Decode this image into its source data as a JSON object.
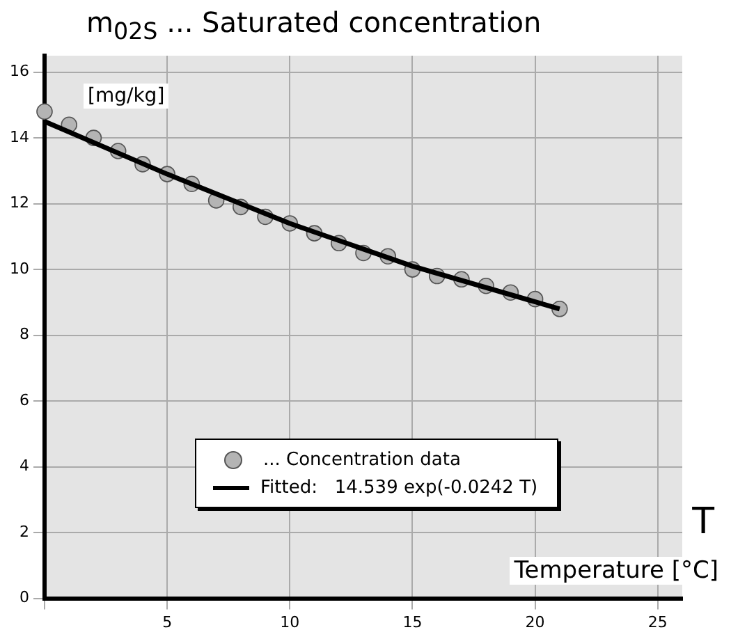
{
  "chart_data": {
    "type": "scatter",
    "title": "m$_{02S}$ ... Saturated concentration",
    "ylabel": "[mg/kg]",
    "xlabel": "Temperature [°C]",
    "annotations": [
      "T"
    ],
    "series": [
      {
        "name": "... Concentration data",
        "type": "scatter",
        "color": "#b4b4b4",
        "marker": "circle",
        "x": [
          0,
          1,
          2,
          3,
          4,
          5,
          6,
          7,
          8,
          9,
          10,
          11,
          12,
          13,
          14,
          15,
          16,
          17,
          18,
          19,
          20,
          21
        ],
        "values": [
          14.8,
          14.4,
          14.0,
          13.6,
          13.2,
          12.9,
          12.6,
          12.1,
          11.9,
          11.6,
          11.4,
          11.1,
          10.8,
          10.5,
          10.4,
          10.0,
          9.8,
          9.7,
          9.5,
          9.3,
          9.1,
          8.8
        ]
      },
      {
        "name": "Fitted:   14.539 exp(-0.0242 T)",
        "type": "line",
        "color": "#000000",
        "marker": "none",
        "line_style": "solid",
        "x": [
          0,
          5,
          10,
          15,
          21
        ],
        "values": [
          14.5,
          12.9,
          11.4,
          10.1,
          8.8
        ]
      }
    ],
    "xlim": [
      0,
      26
    ],
    "xticks": [
      {
        "value": 0,
        "label": null
      },
      5,
      10,
      15,
      20,
      25
    ],
    "ylim": [
      0,
      16.5
    ],
    "yticks": [
      0,
      2,
      4,
      6,
      8,
      10,
      12,
      14,
      16
    ],
    "grid": true,
    "legend": "bottom"
  }
}
